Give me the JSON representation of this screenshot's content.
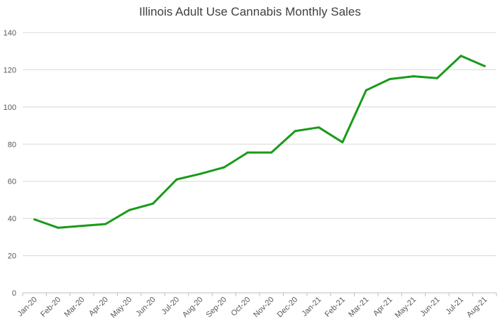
{
  "chart_data": {
    "type": "line",
    "title": "Illinois Adult Use Cannabis Monthly Sales",
    "xlabel": "",
    "ylabel": "",
    "ylim": [
      0,
      140
    ],
    "yticks": [
      0,
      20,
      40,
      60,
      80,
      100,
      120,
      140
    ],
    "grid": true,
    "legend": "none",
    "categories": [
      "Jan-20",
      "Feb-20",
      "Mar-20",
      "Apr-20",
      "May-20",
      "Jun-20",
      "Jul-20",
      "Aug-20",
      "Sep-20",
      "Oct-20",
      "Nov-20",
      "Dec-20",
      "Jan-21",
      "Feb-21",
      "Mar-21",
      "Apr-21",
      "May-21",
      "Jun-21",
      "Jul-21",
      "Aug-21"
    ],
    "series": [
      {
        "name": "Monthly Sales",
        "color": "#1a9a1a",
        "values": [
          39.5,
          35,
          36,
          37,
          44.5,
          48,
          61,
          64,
          67.5,
          75.5,
          75.5,
          87,
          89,
          81,
          109,
          115,
          116.5,
          115.5,
          127.5,
          122
        ]
      }
    ]
  }
}
